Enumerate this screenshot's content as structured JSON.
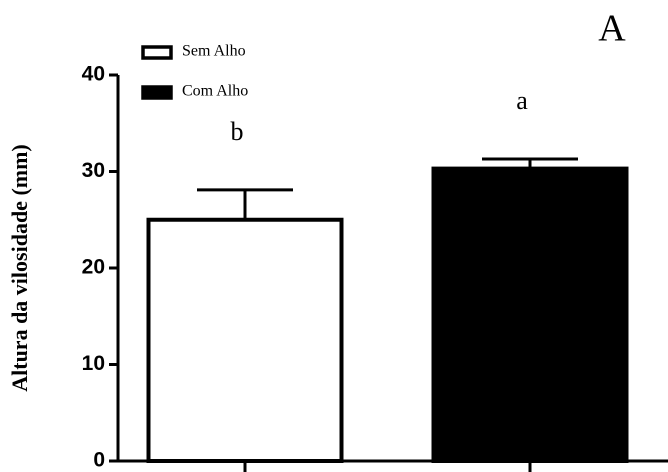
{
  "chart_data": {
    "type": "bar",
    "panel_label": "A",
    "ylabel": "Altura da vilosidade (mm)",
    "ylim": [
      0,
      40
    ],
    "yticks": [
      0,
      10,
      20,
      30,
      40
    ],
    "series": [
      {
        "name": "Sem Alho",
        "color": "#ffffff",
        "values": [
          25.0
        ],
        "errors": [
          3.1
        ],
        "letter": "b"
      },
      {
        "name": "Com Alho",
        "color": "#000000",
        "values": [
          30.3
        ],
        "errors": [
          1.0
        ],
        "letter": "a"
      }
    ]
  }
}
